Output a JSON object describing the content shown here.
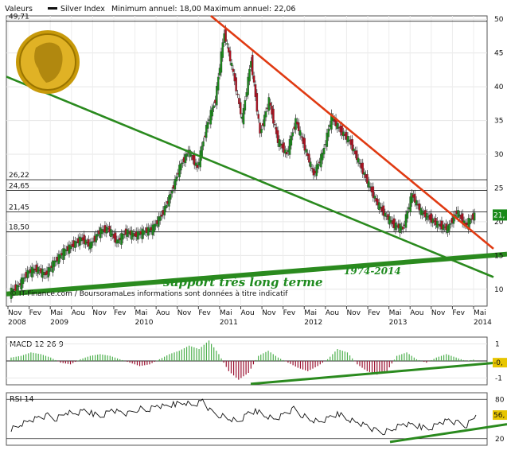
{
  "header": {
    "label1": "Valeurs",
    "legend_series": "Silver Index",
    "range_text": "Minimum annuel: 18,00 Maximum annuel: 22,06"
  },
  "footer_credit": "© IT-Finance.com / BoursoramaLes informations sont données à titre indicatif",
  "annotations": {
    "support_label": "support très long terme",
    "period_label": "1974-2014"
  },
  "colors": {
    "price": "#1a8a1a",
    "trend_down": "#e03a12",
    "trend_green": "#2a8a1e",
    "macd_up": "#4caf4c",
    "macd_down": "#9a1030",
    "badge": "#c8a000",
    "grid": "#444444"
  },
  "chart_data": [
    {
      "type": "line",
      "name": "price",
      "series": [
        {
          "name": "Silver Index",
          "values": [
            9.5,
            10.5,
            12.5,
            13.0,
            12.2,
            14.0,
            15.5,
            16.5,
            17.5,
            16.5,
            18.5,
            19.0,
            17.0,
            18.5,
            18.0,
            18.5,
            19.0,
            21.0,
            24.0,
            28.0,
            30.5,
            28.0,
            34.0,
            38.0,
            48.0,
            42.0,
            35.0,
            44.0,
            33.0,
            38.0,
            32.0,
            30.0,
            35.0,
            31.0,
            27.0,
            30.0,
            35.5,
            33.5,
            32.0,
            29.0,
            26.0,
            23.0,
            21.0,
            19.5,
            19.0,
            24.0,
            21.5,
            20.5,
            19.5,
            19.0,
            21.5,
            19.5,
            21.0
          ]
        }
      ],
      "x_ticks": [
        "Nov\n2008",
        "Fev",
        "Mai\n2009",
        "Aou",
        "Nov",
        "Fev",
        "Mai\n2010",
        "Aou",
        "Nov",
        "Fev",
        "Mai\n2011",
        "Aou",
        "Nov",
        "Fev",
        "Mai\n2012",
        "Aou",
        "Nov",
        "Fev",
        "Mai\n2013",
        "Aou",
        "Nov",
        "Fev",
        "Mai\n2014"
      ],
      "y_ticks": [
        10,
        15,
        20,
        25,
        30,
        35,
        40,
        45,
        50
      ],
      "ylim": [
        7.5,
        50.5
      ],
      "horizontal_levels": [
        "49,71",
        "26,22",
        "24,65",
        "21,45",
        "18,50"
      ],
      "last_value_label": "21,"
    },
    {
      "type": "bar",
      "name": "MACD 12 26 9",
      "values": [
        0.2,
        0.3,
        0.5,
        0.4,
        0.2,
        -0.1,
        -0.2,
        0.1,
        0.3,
        0.4,
        0.3,
        0.1,
        -0.1,
        -0.3,
        -0.2,
        0.1,
        0.4,
        0.6,
        0.9,
        0.7,
        1.2,
        0.4,
        -0.6,
        -1.1,
        -0.7,
        0.3,
        0.6,
        0.2,
        -0.1,
        -0.4,
        -0.6,
        -0.3,
        0.1,
        0.7,
        0.5,
        -0.2,
        -0.6,
        -0.8,
        -0.6,
        0.3,
        0.5,
        0.1,
        -0.1,
        0.2,
        0.4,
        0.2,
        0.0,
        0.1
      ],
      "y_ticks": [
        "1",
        "-1"
      ],
      "last_value_label": "-0,",
      "ylim": [
        -1.4,
        1.4
      ]
    },
    {
      "type": "line",
      "name": "RSI 14",
      "series": [
        {
          "name": "RSI 14",
          "values": [
            35,
            42,
            48,
            52,
            55,
            50,
            60,
            57,
            62,
            58,
            55,
            65,
            60,
            58,
            66,
            63,
            70,
            68,
            73,
            76,
            71,
            78,
            60,
            55,
            50,
            45,
            58,
            62,
            55,
            50,
            58,
            65,
            55,
            48,
            45,
            52,
            58,
            50,
            45,
            40,
            32,
            30,
            35,
            42,
            40,
            38,
            36,
            45,
            48,
            44,
            40,
            56
          ]
        }
      ],
      "y_ticks": [
        "80",
        "20"
      ],
      "last_value_label": "56,",
      "ylim": [
        10,
        90
      ]
    }
  ]
}
